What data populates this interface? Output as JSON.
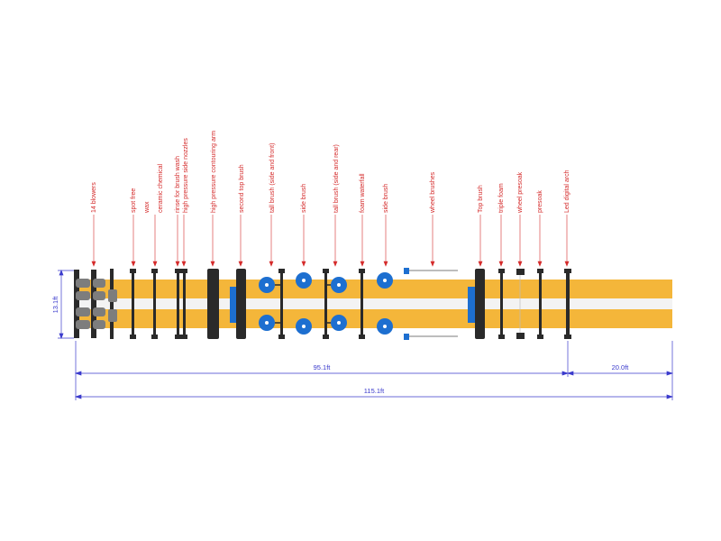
{
  "labels": [
    {
      "key": "blowers",
      "text": "14 blowers"
    },
    {
      "key": "spot_free",
      "text": "spot free"
    },
    {
      "key": "wax",
      "text": "wax"
    },
    {
      "key": "ceramic",
      "text": "ceramic chemical"
    },
    {
      "key": "rinse",
      "text": "rinse for brush wash"
    },
    {
      "key": "hp_side",
      "text": "high pressure side nozzles"
    },
    {
      "key": "hp_arm",
      "text": "high pressure contouring arm"
    },
    {
      "key": "second_top",
      "text": "second top brush"
    },
    {
      "key": "tall_front",
      "text": "tall brush (side and front)"
    },
    {
      "key": "side_brush_1",
      "text": "side brush"
    },
    {
      "key": "tall_rear",
      "text": "tall brush (side and rear)"
    },
    {
      "key": "foam_waterfall",
      "text": "foam waterfall"
    },
    {
      "key": "side_brush_2",
      "text": "side brush"
    },
    {
      "key": "wheel_brushes",
      "text": "wheel brushes"
    },
    {
      "key": "top_brush",
      "text": "Top brush"
    },
    {
      "key": "triple_foam",
      "text": "triple foam"
    },
    {
      "key": "wheel_presoak",
      "text": "wheel presoak"
    },
    {
      "key": "presoak",
      "text": "presoak"
    },
    {
      "key": "led_arch",
      "text": "Led digital arch"
    }
  ],
  "dimensions": {
    "width": "13.1ft",
    "machine_length": "95.1ft",
    "extension": "20.0ft",
    "total_length": "115.1ft"
  },
  "colors": {
    "label": "#d42a2a",
    "dimension": "#3a3acc",
    "track": "#f4b63a",
    "brush": "#1d6fd0",
    "arch": "#2a2a2a"
  }
}
